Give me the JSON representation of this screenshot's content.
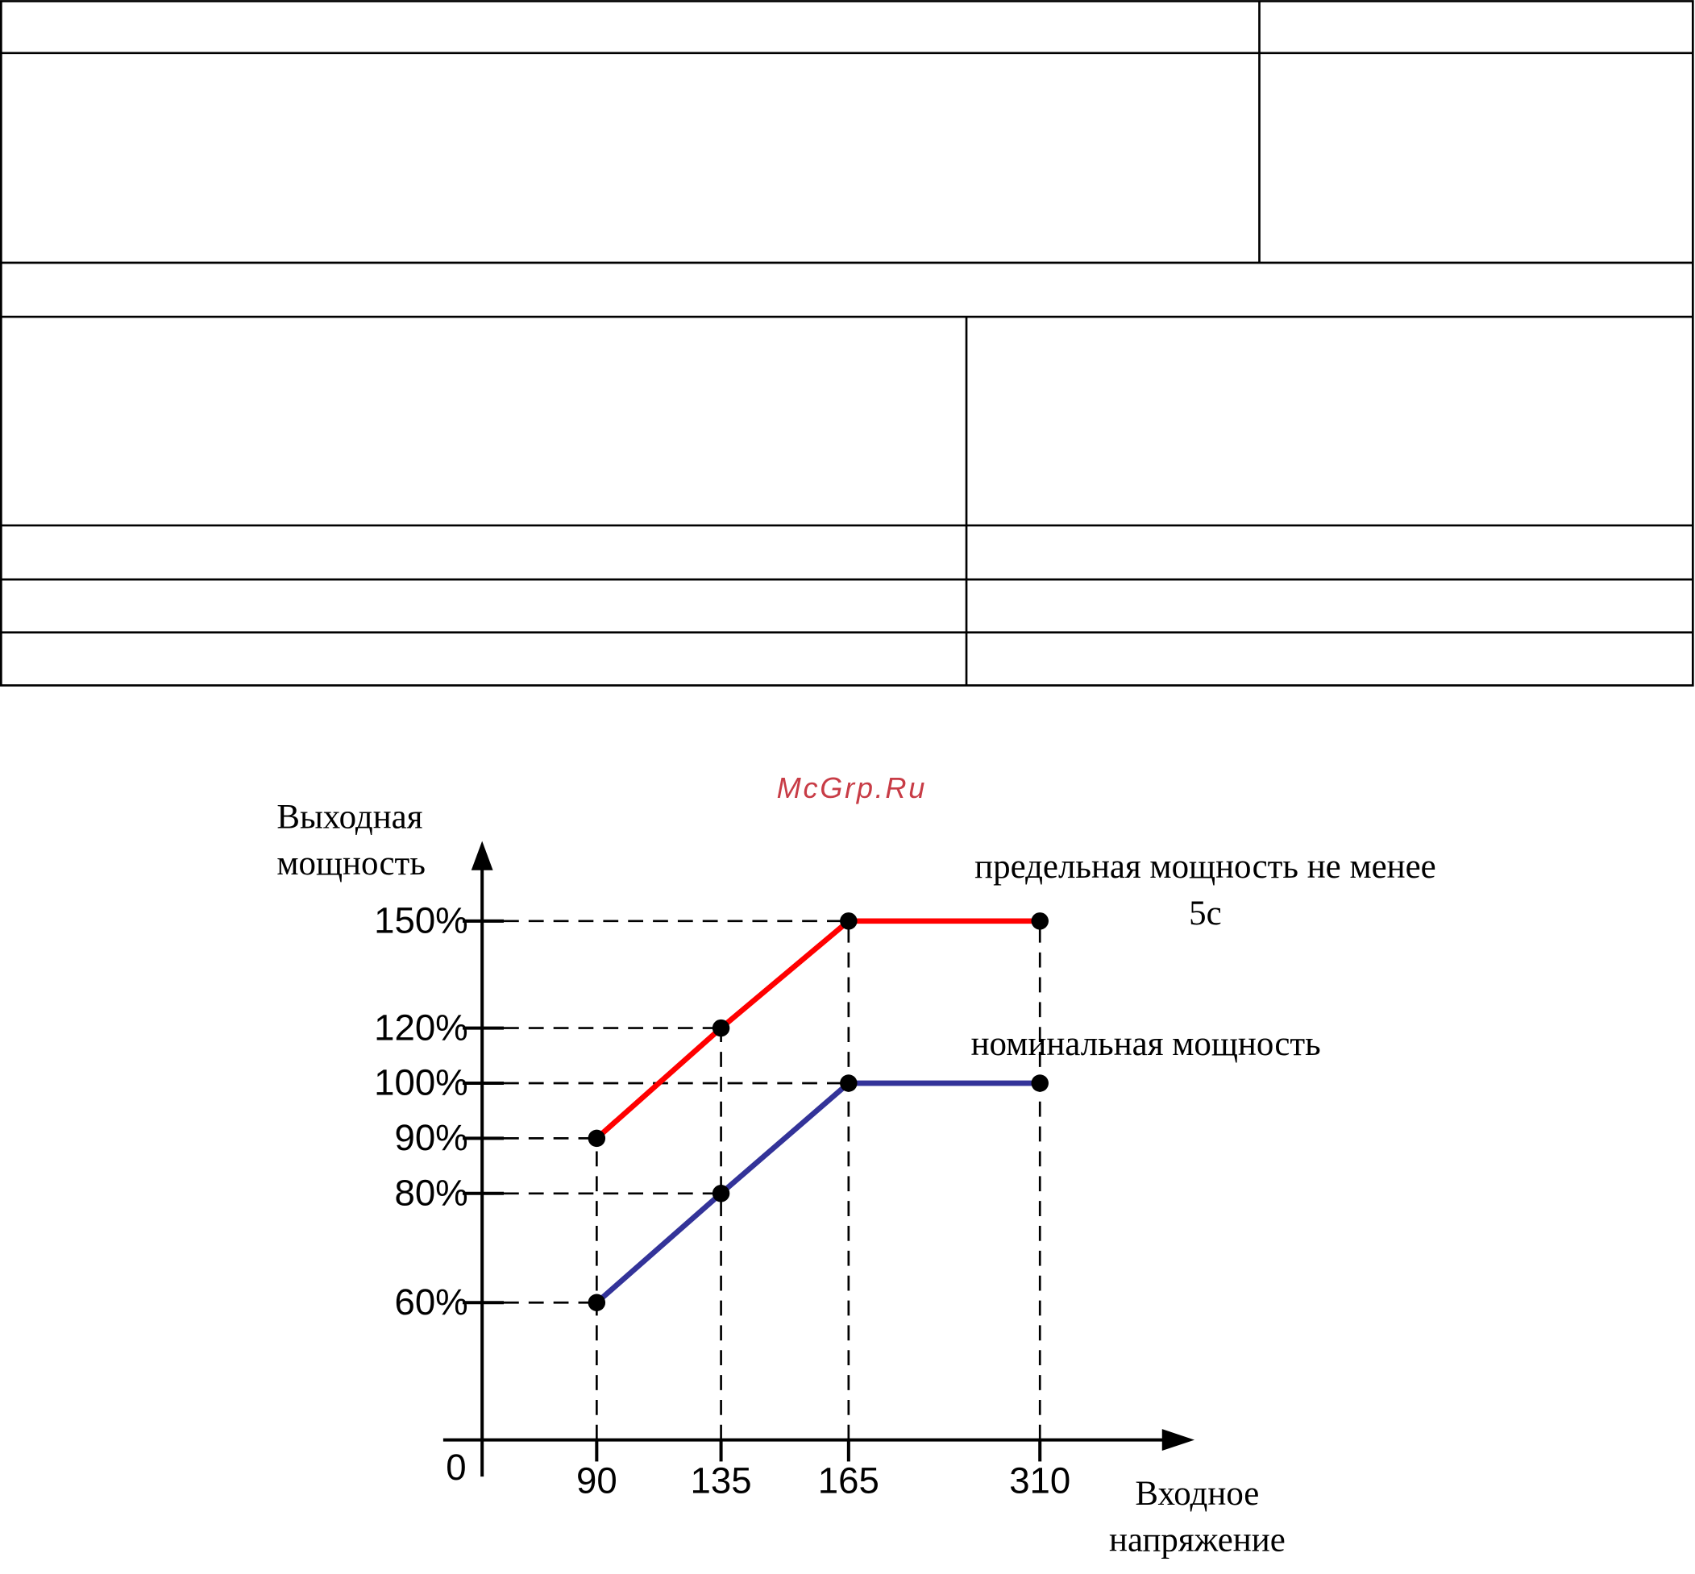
{
  "watermark": "McGrp.Ru",
  "chart_data": {
    "type": "line",
    "y_label": "Выходная мощность",
    "x_label": "Входное напряжение",
    "categories": [
      "90",
      "135",
      "165",
      "310"
    ],
    "series": [
      {
        "name": "предельная мощность не менее 5с",
        "color": "#ff0000",
        "values": [
          90,
          120,
          150,
          150
        ]
      },
      {
        "name": "номинальная мощность",
        "color": "#333399",
        "values": [
          60,
          80,
          100,
          100
        ]
      }
    ],
    "yticks": [
      0,
      {
        "value": 60,
        "label": "60%"
      },
      {
        "value": 80,
        "label": "80%"
      },
      {
        "value": 90,
        "label": "90%"
      },
      {
        "value": 100,
        "label": "100%"
      },
      {
        "value": 120,
        "label": "120%"
      },
      {
        "value": 150,
        "label": "150%"
      }
    ]
  }
}
